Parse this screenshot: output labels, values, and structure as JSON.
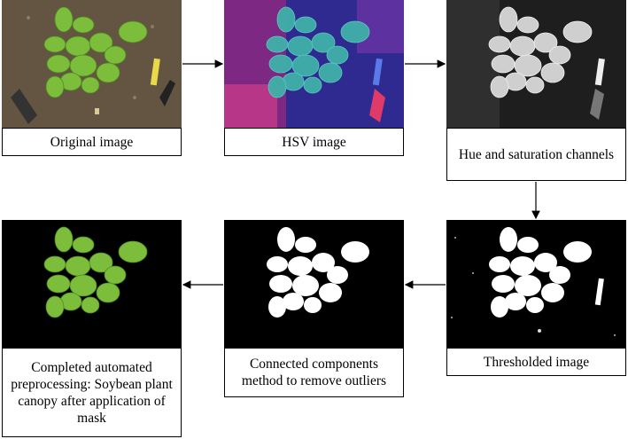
{
  "steps": {
    "original": "Original image",
    "hsv": "HSV image",
    "hue_sat": "Hue and saturation channels",
    "threshold": "Thresholded image",
    "components": "Connected components method to remove outliers",
    "final": "Completed automated preprocessing: Soybean plant canopy after application of mask"
  },
  "colors": {
    "leaf": "#78b83a",
    "leaf_dark": "#4f8a22",
    "soil": "#6b5a48",
    "hsv_bg": "#2e2a8f",
    "hsv_leaf": "#3fb0a8",
    "mask_white": "#ffffff",
    "black": "#000000"
  }
}
